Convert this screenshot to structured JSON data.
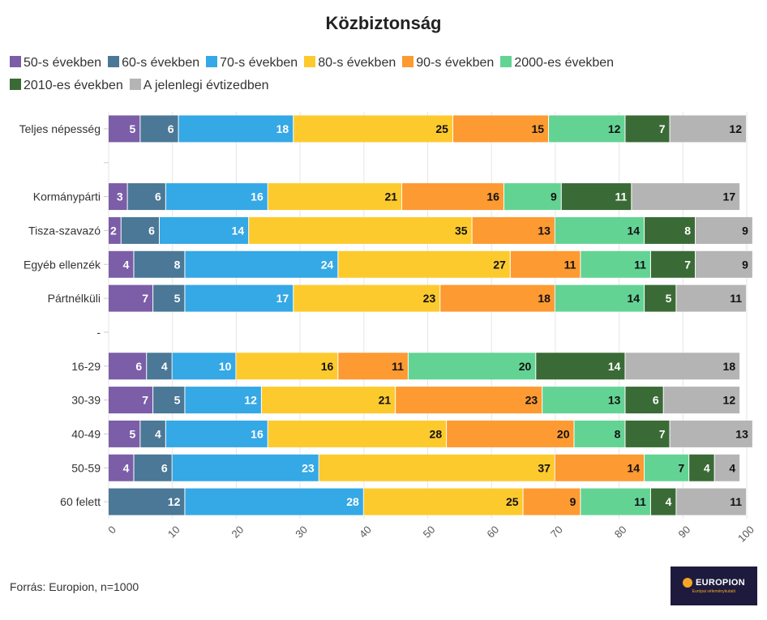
{
  "chart_data": {
    "type": "bar",
    "orientation": "horizontal",
    "stacked": true,
    "title": "Közbiztonság",
    "xlim": [
      0,
      100
    ],
    "xticks": [
      0,
      10,
      20,
      30,
      40,
      50,
      60,
      70,
      80,
      90,
      100
    ],
    "grid": true,
    "legend_position": "top-left",
    "categories": [
      "Teljes népesség",
      "",
      "Kormánypárti",
      "Tisza-szavazó",
      "Egyéb ellenzék",
      "Pártnélküli",
      "-",
      "16-29",
      "30-39",
      "40-49",
      "50-59",
      "60 felett"
    ],
    "series": [
      {
        "name": "50-s években",
        "color": "#7b5ea7",
        "values": [
          5,
          null,
          3,
          2,
          4,
          7,
          null,
          6,
          7,
          5,
          4,
          0
        ]
      },
      {
        "name": "60-s években",
        "color": "#4a7896",
        "values": [
          6,
          null,
          6,
          6,
          8,
          5,
          null,
          4,
          5,
          4,
          6,
          12
        ]
      },
      {
        "name": "70-s években",
        "color": "#35a8e6",
        "values": [
          18,
          null,
          16,
          14,
          24,
          17,
          null,
          10,
          12,
          16,
          23,
          28
        ]
      },
      {
        "name": "80-s években",
        "color": "#fdca2e",
        "values": [
          25,
          null,
          21,
          35,
          27,
          23,
          null,
          16,
          21,
          28,
          37,
          25
        ]
      },
      {
        "name": "90-s években",
        "color": "#fd9a32",
        "values": [
          15,
          null,
          16,
          13,
          11,
          18,
          null,
          11,
          23,
          20,
          14,
          9
        ]
      },
      {
        "name": "2000-es években",
        "color": "#63d394",
        "values": [
          12,
          null,
          9,
          14,
          11,
          14,
          null,
          20,
          13,
          8,
          7,
          11
        ]
      },
      {
        "name": "2010-es években",
        "color": "#3a6b36",
        "values": [
          7,
          null,
          11,
          8,
          7,
          5,
          null,
          14,
          6,
          7,
          4,
          4
        ]
      },
      {
        "name": "A jelenlegi évtizedben",
        "color": "#b4b4b4",
        "values": [
          12,
          null,
          17,
          9,
          9,
          11,
          null,
          18,
          12,
          13,
          4,
          11
        ]
      }
    ]
  },
  "footer": {
    "source": "Forrás: Europion, n=1000",
    "logo_text": "EUROPION",
    "logo_subtext": "Európai véleménykutató"
  }
}
